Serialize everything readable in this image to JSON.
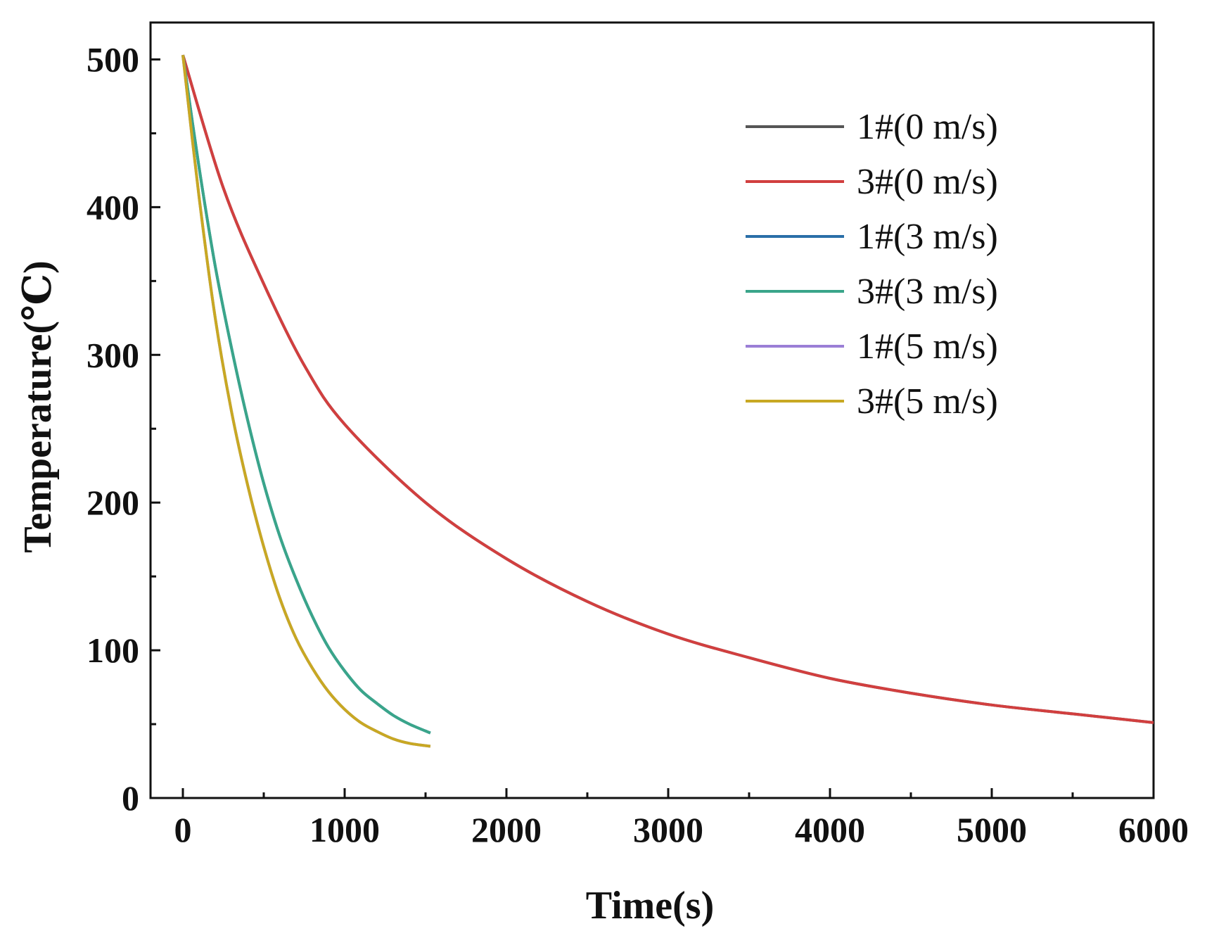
{
  "chart_data": {
    "type": "line",
    "title": "",
    "xlabel": "Time(s)",
    "ylabel": "Temperature(℃)",
    "xlim": [
      -200,
      6000
    ],
    "ylim": [
      0,
      525
    ],
    "x_ticks": [
      0,
      1000,
      2000,
      3000,
      4000,
      5000,
      6000
    ],
    "x_tick_labels": [
      "0",
      "1000",
      "2000",
      "3000",
      "4000",
      "5000",
      "6000"
    ],
    "y_ticks": [
      0,
      100,
      200,
      300,
      400,
      500
    ],
    "y_tick_labels": [
      "0",
      "100",
      "200",
      "300",
      "400",
      "500"
    ],
    "grid": false,
    "legend_position": "top-right",
    "series": [
      {
        "name": "1#(0 m/s)",
        "color": "#555555",
        "x": [
          0,
          250,
          500,
          750,
          1000,
          1500,
          2000,
          2500,
          3000,
          3500,
          4000,
          4500,
          5000,
          5500,
          6000
        ],
        "y": [
          503,
          413,
          348,
          293,
          253,
          200,
          162,
          133,
          111,
          95,
          81,
          71,
          63,
          57,
          51
        ]
      },
      {
        "name": "3#(0 m/s)",
        "color": "#d13f3f",
        "x": [
          0,
          250,
          500,
          750,
          1000,
          1500,
          2000,
          2500,
          3000,
          3500,
          4000,
          4500,
          5000,
          5500,
          6000
        ],
        "y": [
          503,
          413,
          348,
          293,
          253,
          200,
          162,
          133,
          111,
          95,
          81,
          71,
          63,
          57,
          51
        ]
      },
      {
        "name": "1#(3 m/s)",
        "color": "#2a6fa8",
        "x": [
          0,
          100,
          200,
          300,
          400,
          500,
          600,
          700,
          800,
          900,
          1000,
          1100,
          1200,
          1300,
          1400,
          1530
        ],
        "y": [
          503,
          427,
          360,
          305,
          256,
          213,
          177,
          148,
          123,
          102,
          86,
          73,
          64,
          56,
          50,
          44
        ]
      },
      {
        "name": "3#(3 m/s)",
        "color": "#3aa58a",
        "x": [
          0,
          100,
          200,
          300,
          400,
          500,
          600,
          700,
          800,
          900,
          1000,
          1100,
          1200,
          1300,
          1400,
          1530
        ],
        "y": [
          503,
          427,
          360,
          305,
          256,
          213,
          177,
          148,
          123,
          102,
          86,
          73,
          64,
          56,
          50,
          44
        ]
      },
      {
        "name": "1#(5 m/s)",
        "color": "#9b7fd6",
        "x": [
          0,
          100,
          200,
          300,
          400,
          500,
          600,
          700,
          800,
          900,
          1000,
          1100,
          1200,
          1300,
          1400,
          1530
        ],
        "y": [
          503,
          407,
          325,
          262,
          212,
          170,
          135,
          108,
          88,
          72,
          60,
          51,
          45,
          40,
          37,
          35
        ]
      },
      {
        "name": "3#(5 m/s)",
        "color": "#c8a823",
        "x": [
          0,
          100,
          200,
          300,
          400,
          500,
          600,
          700,
          800,
          900,
          1000,
          1100,
          1200,
          1300,
          1400,
          1530
        ],
        "y": [
          503,
          407,
          325,
          262,
          212,
          170,
          135,
          108,
          88,
          72,
          60,
          51,
          45,
          40,
          37,
          35
        ]
      }
    ]
  }
}
